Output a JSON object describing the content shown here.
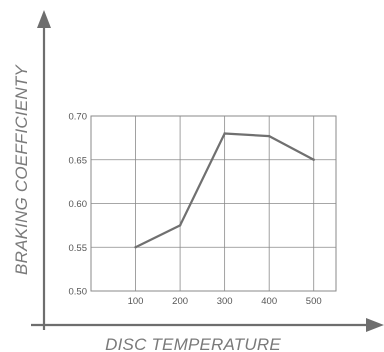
{
  "chart_data": {
    "type": "line",
    "title": "",
    "xlabel": "DISC TEMPERATURE",
    "ylabel": "BRAKING  COEFFICIENTY",
    "x": [
      100,
      200,
      300,
      400,
      500
    ],
    "xlim": [
      0,
      550
    ],
    "ylim": [
      0.5,
      0.7
    ],
    "x_ticks": [
      "100",
      "200",
      "300",
      "400",
      "500"
    ],
    "y_ticks": [
      "0.50",
      "0.55",
      "0.60",
      "0.65",
      "0.70"
    ],
    "series": [
      {
        "values": [
          0.55,
          0.575,
          0.68,
          0.677,
          0.65
        ]
      }
    ],
    "grid": true,
    "legend": "none"
  },
  "colors": {
    "axis": "#6e6e6e",
    "grid": "#8a8a8a",
    "line": "#707070",
    "text": "#555555"
  }
}
